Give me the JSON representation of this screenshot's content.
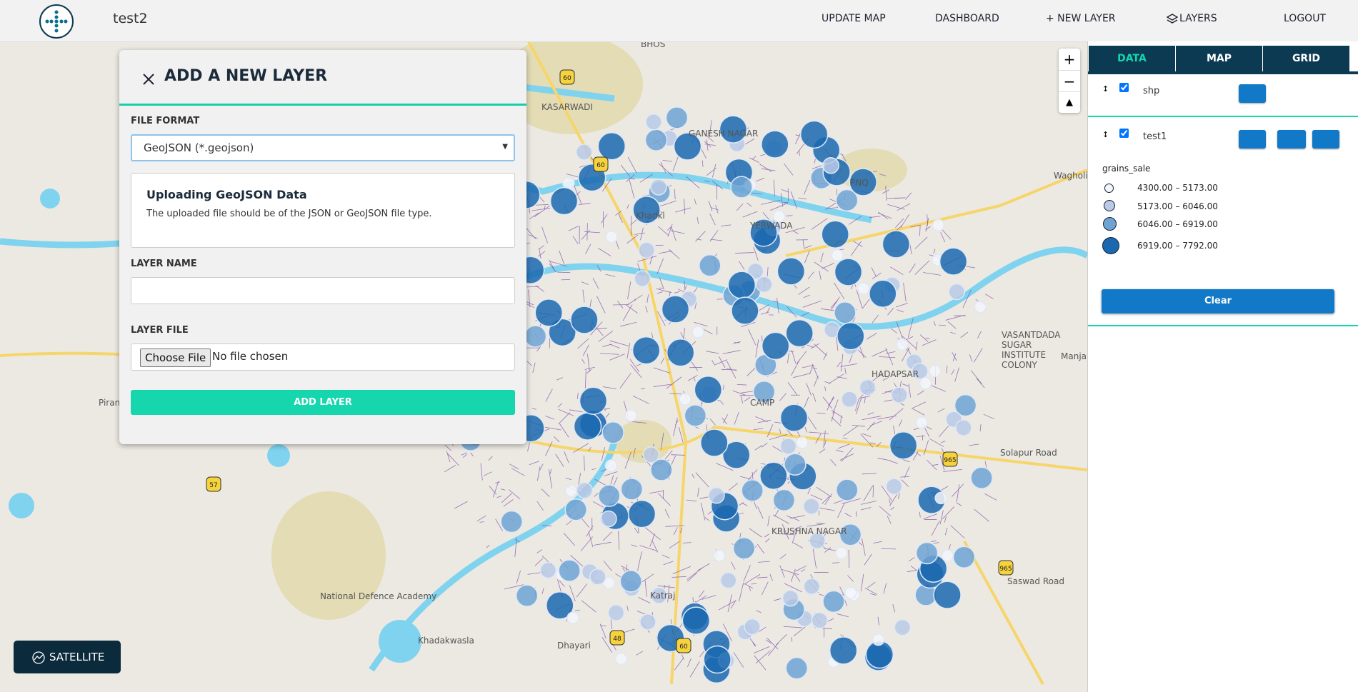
{
  "header": {
    "app_name": "test2",
    "nav": [
      "UPDATE MAP",
      "DASHBOARD",
      "+ NEW LAYER",
      "LAYERS",
      "LOGOUT"
    ]
  },
  "dialog": {
    "title": "ADD A NEW LAYER",
    "file_format_label": "FILE FORMAT",
    "file_format_value": "GeoJSON (*.geojson)",
    "info_title": "Uploading GeoJSON Data",
    "info_text": "The uploaded file should be of the JSON or GeoJSON file type.",
    "layer_name_label": "LAYER NAME",
    "layer_file_label": "LAYER FILE",
    "choose_file": "Choose File",
    "no_file": "No file chosen",
    "submit": "ADD LAYER"
  },
  "panel": {
    "tabs": [
      "DATA",
      "MAP",
      "GRID"
    ],
    "layers": [
      "shp",
      "test1"
    ],
    "legend_title": "grains_sale",
    "legend_items": [
      "4300.00 – 5173.00",
      "5173.00 – 6046.00",
      "6046.00 – 6919.00",
      "6919.00 – 7792.00"
    ],
    "clear": "Clear"
  },
  "map": {
    "zoom_in": "+",
    "zoom_out": "−",
    "satellite": "SATELLITE",
    "labels": [
      "BHOS",
      "KASARWADI",
      "GANESH NAGAR",
      "Khadki",
      "PNQ",
      "Wagholi",
      "YERWADA",
      "CAMP",
      "HADAPSAR",
      "Solapur Road",
      "VASANTDADA SUGAR INSTITUTE COLONY",
      "Manja",
      "Piran",
      "National Defence Academy",
      "Khadakwasla",
      "Dhayari",
      "KRUSHNA NAGAR",
      "Katraj",
      "Saswad Road"
    ],
    "shields": [
      "60",
      "60",
      "57",
      "48",
      "60",
      "965",
      "965"
    ]
  }
}
